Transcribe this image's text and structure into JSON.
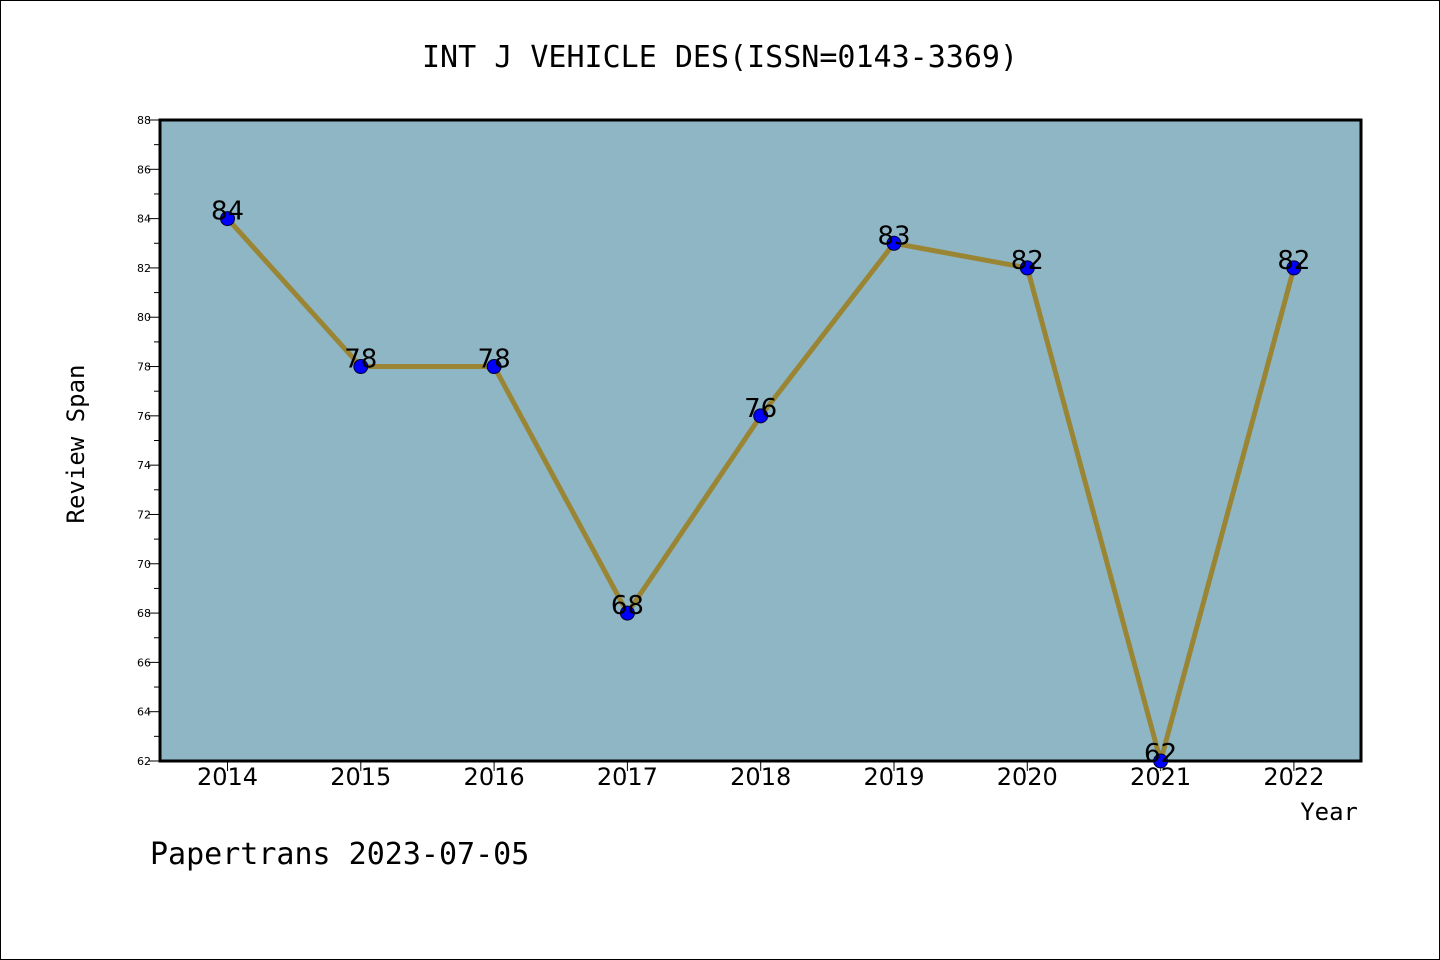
{
  "chart_data": {
    "type": "line",
    "title": "INT J VEHICLE DES(ISSN=0143-3369)",
    "xlabel": "Year",
    "ylabel": "Review Span",
    "categories": [
      "2014",
      "2015",
      "2016",
      "2017",
      "2018",
      "2019",
      "2020",
      "2021",
      "2022"
    ],
    "values": [
      84,
      78,
      78,
      68,
      76,
      83,
      82,
      62,
      82
    ],
    "ylim": [
      62,
      88
    ],
    "yticks": [
      62,
      64,
      66,
      68,
      70,
      72,
      74,
      76,
      78,
      80,
      82,
      84,
      86,
      88
    ],
    "data_labels": [
      "84",
      "78",
      "78",
      "68",
      "76",
      "83",
      "82",
      "62",
      "82"
    ],
    "grid": false,
    "colors": {
      "plot_background": "#8fb6c5",
      "line": "#9a8535",
      "marker": "#0000ff"
    }
  },
  "footer": "Papertrans 2023-07-05"
}
